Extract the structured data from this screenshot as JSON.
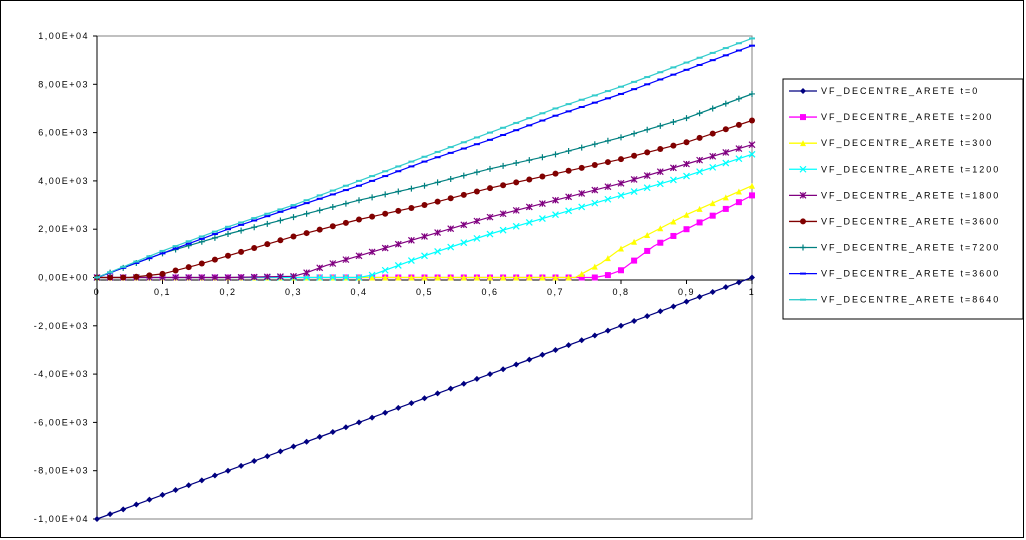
{
  "chart_data": {
    "type": "line",
    "title": "",
    "xlabel": "",
    "ylabel": "",
    "xlim": [
      0,
      1
    ],
    "ylim": [
      -10000,
      10000
    ],
    "grid": false,
    "legend_position": "right",
    "x_tick_labels": [
      "0",
      "0,1",
      "0,2",
      "0,3",
      "0,4",
      "0,5",
      "0,6",
      "0,7",
      "0,8",
      "0,9",
      "1"
    ],
    "y_tick_labels": [
      "1,00E+04",
      "8,00E+03",
      "6,00E+03",
      "4,00E+03",
      "2,00E+03",
      "0,00E+00",
      "-2,00E+03",
      "-4,00E+03",
      "-6,00E+03",
      "-8,00E+03",
      "-1,00E+04"
    ],
    "series": [
      {
        "name": "VF_DECENTRE_ARETE t=0",
        "color": "#000080",
        "marker": "diamond",
        "points": [
          [
            0,
            -10000
          ],
          [
            0.05,
            -9500
          ],
          [
            0.1,
            -9000
          ],
          [
            0.15,
            -8500
          ],
          [
            0.2,
            -8000
          ],
          [
            0.25,
            -7500
          ],
          [
            0.3,
            -7000
          ],
          [
            0.35,
            -6500
          ],
          [
            0.4,
            -6000
          ],
          [
            0.45,
            -5500
          ],
          [
            0.5,
            -5000
          ],
          [
            0.55,
            -4500
          ],
          [
            0.6,
            -4000
          ],
          [
            0.65,
            -3500
          ],
          [
            0.7,
            -3000
          ],
          [
            0.75,
            -2500
          ],
          [
            0.8,
            -2000
          ],
          [
            0.85,
            -1500
          ],
          [
            0.9,
            -1000
          ],
          [
            0.95,
            -500
          ],
          [
            1,
            0
          ]
        ]
      },
      {
        "name": "VF_DECENTRE_ARETE t=200",
        "color": "#FF00FF",
        "marker": "square",
        "points": [
          [
            0,
            0
          ],
          [
            0.05,
            0
          ],
          [
            0.1,
            0
          ],
          [
            0.2,
            0
          ],
          [
            0.3,
            0
          ],
          [
            0.4,
            0
          ],
          [
            0.5,
            0
          ],
          [
            0.6,
            0
          ],
          [
            0.7,
            0
          ],
          [
            0.76,
            0
          ],
          [
            0.78,
            100
          ],
          [
            0.8,
            300
          ],
          [
            0.82,
            700
          ],
          [
            0.85,
            1300
          ],
          [
            0.9,
            2000
          ],
          [
            0.95,
            2700
          ],
          [
            1,
            3400
          ]
        ]
      },
      {
        "name": "VF_DECENTRE_ARETE t=300",
        "color": "#FFFF00",
        "marker": "triangle",
        "points": [
          [
            0,
            0
          ],
          [
            0.1,
            0
          ],
          [
            0.2,
            0
          ],
          [
            0.3,
            0
          ],
          [
            0.4,
            0
          ],
          [
            0.5,
            0
          ],
          [
            0.6,
            0
          ],
          [
            0.7,
            0
          ],
          [
            0.73,
            0
          ],
          [
            0.75,
            300
          ],
          [
            0.77,
            600
          ],
          [
            0.8,
            1200
          ],
          [
            0.85,
            1900
          ],
          [
            0.9,
            2600
          ],
          [
            0.95,
            3200
          ],
          [
            1,
            3800
          ]
        ]
      },
      {
        "name": "VF_DECENTRE_ARETE t=1200",
        "color": "#00FFFF",
        "marker": "x",
        "points": [
          [
            0,
            0
          ],
          [
            0.1,
            0
          ],
          [
            0.2,
            0
          ],
          [
            0.3,
            0
          ],
          [
            0.4,
            0
          ],
          [
            0.42,
            100
          ],
          [
            0.45,
            400
          ],
          [
            0.5,
            900
          ],
          [
            0.6,
            1800
          ],
          [
            0.7,
            2600
          ],
          [
            0.8,
            3400
          ],
          [
            0.9,
            4200
          ],
          [
            1,
            5100
          ]
        ]
      },
      {
        "name": "VF_DECENTRE_ARETE t=1800",
        "color": "#800080",
        "marker": "star",
        "points": [
          [
            0,
            0
          ],
          [
            0.1,
            0
          ],
          [
            0.2,
            0
          ],
          [
            0.3,
            50
          ],
          [
            0.32,
            200
          ],
          [
            0.35,
            500
          ],
          [
            0.4,
            900
          ],
          [
            0.5,
            1700
          ],
          [
            0.6,
            2500
          ],
          [
            0.7,
            3200
          ],
          [
            0.8,
            3900
          ],
          [
            0.9,
            4700
          ],
          [
            1,
            5500
          ]
        ]
      },
      {
        "name": "VF_DECENTRE_ARETE t=3600",
        "color": "#800000",
        "marker": "circle",
        "points": [
          [
            0,
            0
          ],
          [
            0.05,
            0
          ],
          [
            0.1,
            150
          ],
          [
            0.15,
            500
          ],
          [
            0.2,
            900
          ],
          [
            0.3,
            1700
          ],
          [
            0.4,
            2400
          ],
          [
            0.5,
            3000
          ],
          [
            0.6,
            3700
          ],
          [
            0.7,
            4300
          ],
          [
            0.8,
            4900
          ],
          [
            0.9,
            5600
          ],
          [
            1,
            6500
          ]
        ]
      },
      {
        "name": "VF_DECENTRE_ARETE t=7200",
        "color": "#008080",
        "marker": "plus",
        "points": [
          [
            0,
            0
          ],
          [
            0.05,
            500
          ],
          [
            0.1,
            1000
          ],
          [
            0.15,
            1400
          ],
          [
            0.2,
            1800
          ],
          [
            0.3,
            2500
          ],
          [
            0.4,
            3200
          ],
          [
            0.5,
            3800
          ],
          [
            0.6,
            4500
          ],
          [
            0.7,
            5100
          ],
          [
            0.8,
            5800
          ],
          [
            0.9,
            6600
          ],
          [
            1,
            7600
          ]
        ]
      },
      {
        "name": "VF_DECENTRE_ARETE t=3600",
        "color": "#0000FF",
        "marker": "dash",
        "points": [
          [
            0,
            0
          ],
          [
            0.1,
            1000
          ],
          [
            0.2,
            2000
          ],
          [
            0.3,
            2900
          ],
          [
            0.4,
            3800
          ],
          [
            0.5,
            4800
          ],
          [
            0.6,
            5700
          ],
          [
            0.7,
            6700
          ],
          [
            0.8,
            7600
          ],
          [
            0.9,
            8600
          ],
          [
            1,
            9600
          ]
        ]
      },
      {
        "name": "VF_DECENTRE_ARETE t=8640",
        "color": "#33CCCC",
        "marker": "dash",
        "points": [
          [
            0,
            0
          ],
          [
            0.1,
            1100
          ],
          [
            0.2,
            2100
          ],
          [
            0.3,
            3000
          ],
          [
            0.4,
            4000
          ],
          [
            0.5,
            5000
          ],
          [
            0.6,
            6000
          ],
          [
            0.7,
            7000
          ],
          [
            0.8,
            7900
          ],
          [
            0.9,
            8900
          ],
          [
            1,
            9900
          ]
        ]
      }
    ]
  }
}
